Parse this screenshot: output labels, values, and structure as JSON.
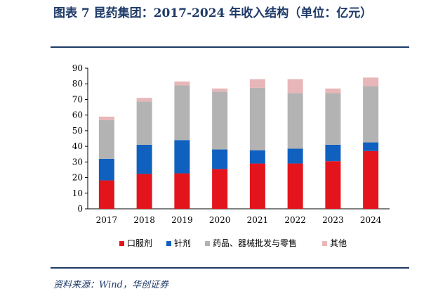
{
  "header": {
    "title": "图表 7   昆药集团：2017-2024 年收入结构（单位：亿元）"
  },
  "source": "资料来源：Wind，华创证券",
  "colors": {
    "brand": "#1f3a68",
    "series": [
      "#e3141b",
      "#1060c0",
      "#b3b3b3",
      "#e8b6b8"
    ]
  },
  "chart_data": {
    "type": "bar",
    "stacked": true,
    "categories": [
      "2017",
      "2018",
      "2019",
      "2020",
      "2021",
      "2022",
      "2023",
      "2024"
    ],
    "ylim": [
      0,
      90
    ],
    "yticks": [
      0,
      10,
      20,
      30,
      40,
      50,
      60,
      70,
      80,
      90
    ],
    "grid": false,
    "legend_position": "bottom",
    "series": [
      {
        "name": "口服剂",
        "values": [
          18.2,
          22.3,
          22.7,
          25.5,
          29.0,
          29.0,
          30.5,
          37.0
        ]
      },
      {
        "name": "针剂",
        "values": [
          13.8,
          18.7,
          21.3,
          12.5,
          8.5,
          9.5,
          10.5,
          5.5
        ]
      },
      {
        "name": "药品、器械批发与零售",
        "values": [
          24.8,
          27.7,
          35.0,
          37.0,
          40.0,
          35.5,
          33.0,
          36.0
        ]
      },
      {
        "name": "其他",
        "values": [
          2.2,
          2.3,
          2.5,
          2.0,
          5.5,
          9.0,
          3.0,
          5.5
        ]
      }
    ]
  }
}
